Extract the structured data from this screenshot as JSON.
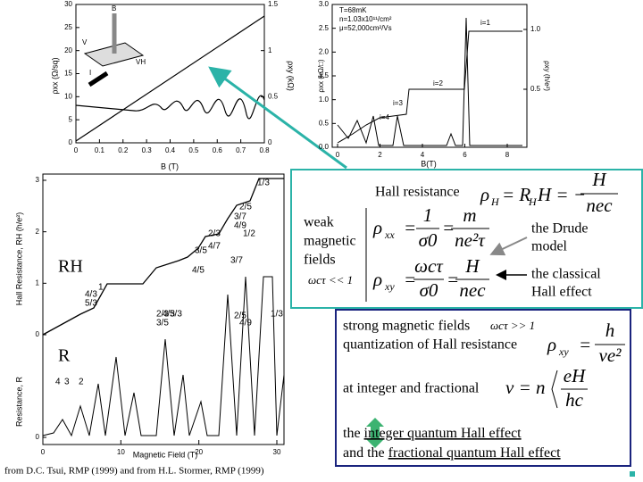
{
  "plot_top_left": {
    "y_label": "ρxx (Ω/sq)",
    "y2_label": "ρxy (kΩ)",
    "x_label": "B (T)",
    "xticks": [
      0,
      0.1,
      0.2,
      0.3,
      0.4,
      0.5,
      0.6,
      0.7,
      0.8
    ],
    "xlim": [
      0,
      0.8
    ],
    "yticks": [
      0,
      5,
      10,
      15,
      20,
      25,
      30
    ],
    "ylim": [
      0,
      30
    ],
    "y2ticks": [
      0,
      0.5,
      1,
      1.5
    ],
    "y2lim": [
      0,
      1.5
    ],
    "inset": {
      "b": "B",
      "i": "I",
      "v": "V",
      "vh": "VH"
    }
  },
  "plot_top_right": {
    "legend": [
      "T=68mK",
      "n=1.03x10¹¹/cm²",
      "μ=52,000cm²/Vs"
    ],
    "y_label": "ρxx (kΩ/□)",
    "y2_label": "ρxy (h/e²)",
    "x_label": "B(T)",
    "xticks": [
      0,
      2,
      4,
      6,
      8
    ],
    "xlim": [
      0,
      8
    ],
    "yticks": [
      {
        "value": 0,
        "label": "0.0"
      },
      {
        "value": 0.5,
        "label": "0.5"
      },
      {
        "value": 1,
        "label": "1.0"
      },
      {
        "value": 1.5,
        "label": "1.5"
      },
      {
        "value": 2,
        "label": "2.0"
      },
      {
        "value": 2.5,
        "label": "2.5"
      },
      {
        "value": 3,
        "label": "3.0"
      }
    ],
    "ylim": [
      0,
      3
    ],
    "y2ticks": [
      {
        "value": 0.5,
        "label": "0.5"
      },
      {
        "value": 1,
        "label": "1.0"
      }
    ],
    "plateaus": [
      "i=1",
      "i=2",
      "i=3",
      "i=4"
    ]
  },
  "plot_bottom_left": {
    "y_label": "Hall Resistance, RH (h/e²)",
    "y2_label": "Resistance, R",
    "x_label": "Magnetic Field (T)",
    "xticks": [
      0,
      10,
      20,
      30
    ],
    "xlim": [
      0,
      30
    ],
    "yticks": [
      0,
      1,
      2,
      3
    ],
    "ylim": [
      0,
      3
    ],
    "r_ticks": [
      0
    ],
    "rh": "RH",
    "r": "R",
    "fractions": [
      "1/3",
      "2/5",
      "3/7",
      "4/9",
      "1/2",
      "2/3",
      "4/7",
      "3/5",
      "4/5",
      "4/3",
      "5/3",
      "2/3",
      "3/5",
      "4/3",
      "5/3",
      "3/7",
      "2/5",
      "1/3",
      "4/9"
    ],
    "integers": [
      "4",
      "3",
      "2",
      "1"
    ]
  },
  "hall_box": {
    "title": "Hall resistance",
    "weak": [
      "weak",
      "magnetic",
      "fields"
    ],
    "weak_condition": "ωcτ << 1",
    "formula_hall": {
      "rho": "ρ",
      "sub": "H",
      "mid": "= R",
      "mid_sub": "H",
      "rest": "H = −",
      "num": "H",
      "den": "nec"
    },
    "formula_xx": {
      "rho": "ρ",
      "sub": "xx",
      "eq1": "=",
      "num1": "1",
      "den1": "σ0",
      "eq2": "=",
      "num2": "m",
      "den2": "ne²τ"
    },
    "formula_xy": {
      "rho": "ρ",
      "sub": "xy",
      "eq1": "=",
      "num1": "ωcτ",
      "den1": "σ0",
      "eq2": "=",
      "num2": "H",
      "den2": "nec"
    },
    "drude": [
      "the Drude",
      "model"
    ],
    "classical": [
      "the classical",
      "Hall effect"
    ]
  },
  "quantum_box": {
    "strong": "strong magnetic fields",
    "strong_condition": "ωcτ >> 1",
    "quantization": "quantization of Hall resistance",
    "formula_q": {
      "rho": "ρ",
      "sub": "xy",
      "eq": "=",
      "num": "h",
      "den": "νe²"
    },
    "fractional": "at integer and fractional",
    "formula_nu": {
      "lhs": "ν = n",
      "num": "eH",
      "den": "hc"
    },
    "integer_prefix": "the ",
    "integer_effect": "integer quantum Hall effect",
    "fractional_prefix": "and the ",
    "fractional_effect": "fractional quantum Hall effect"
  },
  "citation": "from D.C. Tsui, RMP (1999) and from H.L. Stormer, RMP (1999)"
}
